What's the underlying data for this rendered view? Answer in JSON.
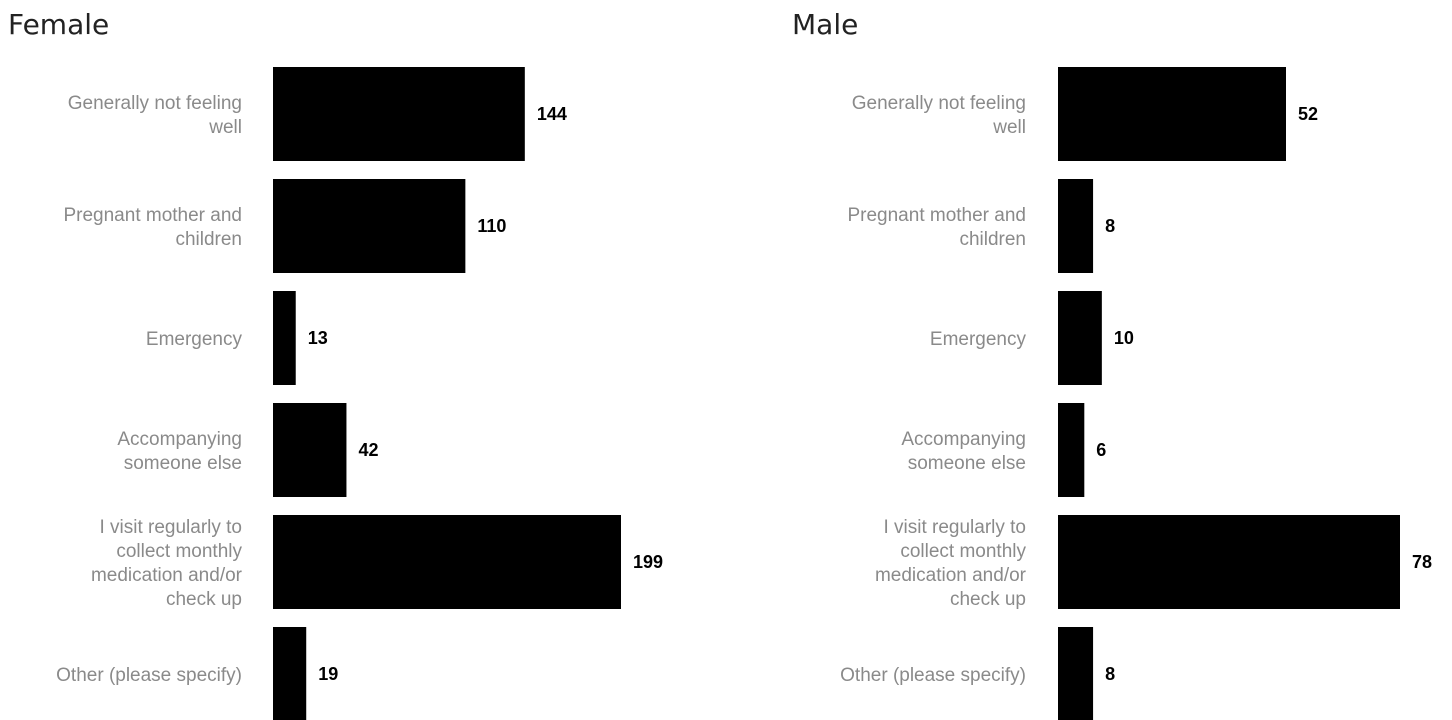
{
  "chart_data": [
    {
      "type": "bar",
      "orientation": "horizontal",
      "title": "Female",
      "categories": [
        [
          "Generally not feeling",
          "well"
        ],
        [
          "Pregnant mother and",
          "children"
        ],
        [
          "Emergency"
        ],
        [
          "Accompanying",
          "someone else"
        ],
        [
          "I visit regularly to",
          "collect monthly",
          "medication and/or",
          "check up"
        ],
        [
          "Other (please specify)"
        ]
      ],
      "values": [
        144,
        110,
        13,
        42,
        199,
        19
      ],
      "value_labels": [
        "144",
        "110",
        "13",
        "42",
        "199",
        "19"
      ],
      "xlabel": "",
      "ylabel": "",
      "xlim": [
        0,
        199
      ],
      "grid": false,
      "bar_color": "#000000",
      "label_color": "#8a8a8a"
    },
    {
      "type": "bar",
      "orientation": "horizontal",
      "title": "Male",
      "categories": [
        [
          "Generally not feeling",
          "well"
        ],
        [
          "Pregnant mother and",
          "children"
        ],
        [
          "Emergency"
        ],
        [
          "Accompanying",
          "someone else"
        ],
        [
          "I visit regularly to",
          "collect monthly",
          "medication and/or",
          "check up"
        ],
        [
          "Other (please specify)"
        ]
      ],
      "values": [
        52,
        8,
        10,
        6,
        78,
        8
      ],
      "value_labels": [
        "52",
        "8",
        "10",
        "6",
        "78",
        "8"
      ],
      "xlabel": "",
      "ylabel": "",
      "xlim": [
        0,
        78
      ],
      "grid": false,
      "bar_color": "#000000",
      "label_color": "#8a8a8a"
    }
  ]
}
